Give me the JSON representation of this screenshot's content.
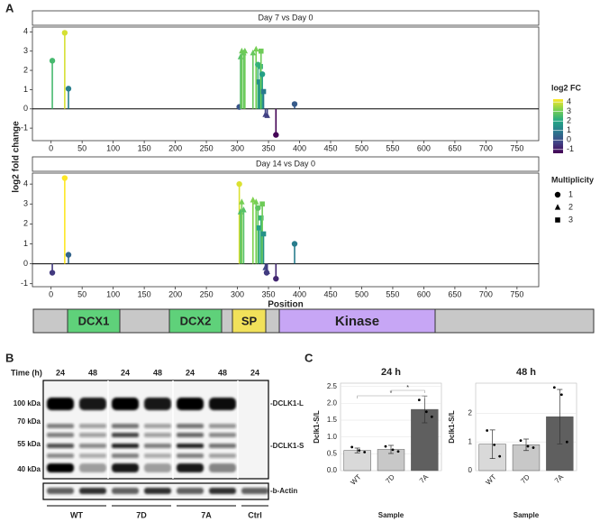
{
  "panel_labels": [
    "A",
    "B",
    "C"
  ],
  "chart_data": [
    {
      "type": "lollipop",
      "title": "Day 7 vs Day 0",
      "ylabel": "log2 fold change",
      "x": [
        2,
        22,
        28,
        303,
        305,
        307,
        310,
        312,
        325,
        330,
        333,
        335,
        337,
        338,
        340,
        342,
        345,
        348,
        362,
        392
      ],
      "values": [
        2.5,
        3.95,
        1.05,
        0.1,
        2.7,
        3.0,
        2.9,
        3.0,
        2.9,
        3.1,
        2.3,
        1.4,
        2.2,
        3.0,
        1.8,
        0.9,
        -0.3,
        -0.35,
        -1.35,
        0.25
      ],
      "multiplicity": [
        1,
        1,
        1,
        1,
        2,
        2,
        2,
        2,
        2,
        2,
        1,
        3,
        3,
        3,
        1,
        3,
        2,
        2,
        1,
        1
      ],
      "xlim": [
        -30,
        785
      ],
      "xticks": [
        0,
        50,
        100,
        150,
        200,
        250,
        300,
        350,
        400,
        450,
        500,
        550,
        600,
        650,
        700,
        750
      ],
      "ylim": [
        -1.65,
        4.25
      ],
      "yticks": [
        -1,
        0,
        1,
        2,
        3,
        4
      ],
      "colormap": "viridis",
      "colorlim": [
        -1.4,
        4.3
      ],
      "color_legend": {
        "title": "log2 FC",
        "ticks": [
          -1,
          0,
          1,
          2,
          3,
          4
        ]
      },
      "shape_legend": {
        "title": "Multiplicity",
        "labels": [
          1,
          2,
          3
        ]
      }
    },
    {
      "type": "lollipop",
      "title": "Day 14 vs Day 0",
      "xlabel": "Position",
      "x": [
        2,
        22,
        28,
        303,
        305,
        307,
        310,
        325,
        330,
        333,
        335,
        338,
        340,
        342,
        345,
        347,
        348,
        362,
        392
      ],
      "values": [
        -0.45,
        4.3,
        0.45,
        4.0,
        2.6,
        3.1,
        2.7,
        3.2,
        3.1,
        2.8,
        1.8,
        2.3,
        3.0,
        1.5,
        -0.2,
        -0.45,
        -0.4,
        -0.75,
        1.0
      ],
      "multiplicity": [
        1,
        1,
        1,
        1,
        2,
        2,
        2,
        2,
        2,
        1,
        3,
        3,
        3,
        3,
        2,
        1,
        2,
        1,
        1
      ],
      "xlim": [
        -30,
        785
      ],
      "xticks": [
        0,
        50,
        100,
        150,
        200,
        250,
        300,
        350,
        400,
        450,
        500,
        550,
        600,
        650,
        700,
        750
      ],
      "ylim": [
        -1.15,
        4.55
      ],
      "yticks": [
        -1,
        0,
        1,
        2,
        3,
        4
      ],
      "colormap": "viridis",
      "colorlim": [
        -1.4,
        4.3
      ]
    },
    {
      "type": "bar",
      "title": "24 h",
      "xlabel": "Sample",
      "ylabel": "Dclk1-S/L",
      "categories": [
        "WT",
        "7D",
        "7A"
      ],
      "values": [
        0.6,
        0.63,
        1.82
      ],
      "errors": [
        0.07,
        0.12,
        0.4
      ],
      "points": [
        [
          0.7,
          0.6,
          0.55
        ],
        [
          0.72,
          0.62,
          0.57
        ],
        [
          2.1,
          1.75,
          1.6
        ]
      ],
      "colors": [
        "#d9d9d9",
        "#c8c8c8",
        "#5f5f5f"
      ],
      "ylim": [
        0,
        2.6
      ],
      "yticks": [
        {
          "value": 0,
          "label": "0.0"
        },
        0.5,
        {
          "value": 1,
          "label": "1.0"
        },
        1.5,
        {
          "value": 2,
          "label": "2.0"
        },
        2.5
      ],
      "significance": [
        {
          "pair": [
            "WT",
            "7A"
          ],
          "label": "*"
        },
        {
          "pair": [
            "7D",
            "7A"
          ],
          "label": "*"
        }
      ]
    },
    {
      "type": "bar",
      "title": "48 h",
      "xlabel": "Sample",
      "ylabel": "Dclk1-S/L",
      "categories": [
        "WT",
        "7D",
        "7A"
      ],
      "values": [
        0.92,
        0.9,
        1.88
      ],
      "errors": [
        0.5,
        0.2,
        0.95
      ],
      "points": [
        [
          1.4,
          0.9,
          0.5
        ],
        [
          1.05,
          0.85,
          0.8
        ],
        [
          2.9,
          2.65,
          1.0
        ]
      ],
      "colors": [
        "#d9d9d9",
        "#c8c8c8",
        "#5f5f5f"
      ],
      "ylim": [
        0,
        3.05
      ],
      "yticks": [
        0,
        1,
        2
      ]
    }
  ],
  "domains": [
    "DCX1",
    "DCX2",
    "SP",
    "Kinase"
  ],
  "blot": {
    "time_label": "Time (h)",
    "times": [
      24,
      48,
      24,
      48,
      24,
      48,
      24
    ],
    "markers": [
      "100 kDa",
      "70 kDa",
      "55 kDa",
      "40 kDa"
    ],
    "bands": [
      "-DCLK1-L",
      "-DCLK1-S",
      "-b-Actin"
    ],
    "groups": [
      "WT",
      "7D",
      "7A",
      "Ctrl"
    ]
  }
}
